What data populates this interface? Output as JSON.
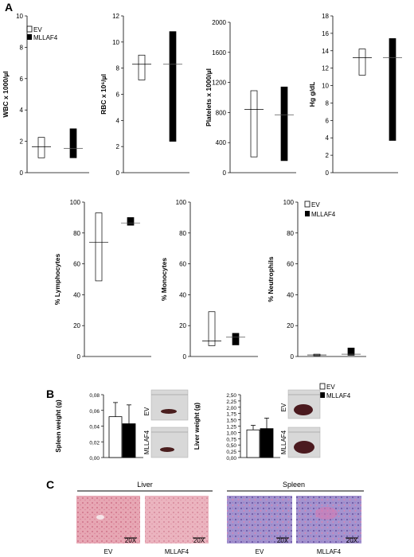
{
  "panels": {
    "a": "A",
    "b": "B",
    "c": "C"
  },
  "legend": {
    "ev": "EV",
    "mllaf4": "MLLAF4"
  },
  "chart_data": [
    {
      "type": "box",
      "id": "wbc",
      "ylabel": "WBC x 1000/µl",
      "ylim": [
        0,
        10
      ],
      "yticks": [
        "0",
        "2",
        "4",
        "6",
        "8",
        "10"
      ],
      "yticks_val": [
        0,
        2,
        4,
        6,
        8,
        10
      ],
      "series": [
        {
          "name": "EV",
          "low": 0.95,
          "high": 2.25,
          "mid": 1.65
        },
        {
          "name": "MLLAF4",
          "low": 0.95,
          "high": 2.8,
          "mid": 1.55
        }
      ]
    },
    {
      "type": "box",
      "id": "rbc",
      "ylabel": "RBC x 10⁶/µl",
      "ylim": [
        0,
        12
      ],
      "yticks": [
        "0",
        "2",
        "4",
        "6",
        "8",
        "10",
        "12"
      ],
      "yticks_val": [
        0,
        2,
        4,
        6,
        8,
        10,
        12
      ],
      "series": [
        {
          "name": "EV",
          "low": 7.1,
          "high": 9.0,
          "mid": 8.3
        },
        {
          "name": "MLLAF4",
          "low": 2.4,
          "high": 10.8,
          "mid": 8.3
        }
      ]
    },
    {
      "type": "box",
      "id": "plt",
      "ylabel": "Platelets x 1000/µl",
      "ylim": [
        0,
        2000
      ],
      "yticks": [
        "0",
        "400",
        "800",
        "1200",
        "1600",
        "2000"
      ],
      "yticks_val": [
        0,
        400,
        800,
        1200,
        1600,
        2000
      ],
      "series": [
        {
          "name": "EV",
          "low": 210,
          "high": 1090,
          "mid": 840
        },
        {
          "name": "MLLAF4",
          "low": 160,
          "high": 1140,
          "mid": 770
        }
      ]
    },
    {
      "type": "box",
      "id": "hg",
      "ylabel": "Hg g/dL",
      "ylim": [
        0,
        18
      ],
      "yticks": [
        "0",
        "2",
        "4",
        "6",
        "8",
        "10",
        "12",
        "14",
        "16",
        "18"
      ],
      "yticks_val": [
        0,
        2,
        4,
        6,
        8,
        10,
        12,
        14,
        16,
        18
      ],
      "series": [
        {
          "name": "EV",
          "low": 11.2,
          "high": 14.2,
          "mid": 13.2
        },
        {
          "name": "MLLAF4",
          "low": 3.7,
          "high": 15.4,
          "mid": 13.2
        }
      ]
    },
    {
      "type": "box",
      "id": "lym",
      "ylabel": "% Lymphocytes",
      "ylim": [
        0,
        100
      ],
      "yticks": [
        "0",
        "20",
        "40",
        "60",
        "80",
        "100"
      ],
      "yticks_val": [
        0,
        20,
        40,
        60,
        80,
        100
      ],
      "series": [
        {
          "name": "EV",
          "low": 49,
          "high": 93,
          "mid": 74
        },
        {
          "name": "MLLAF4",
          "low": 85,
          "high": 90,
          "mid": 86.5
        }
      ]
    },
    {
      "type": "box",
      "id": "mono",
      "ylabel": "% Monocytes",
      "ylim": [
        0,
        100
      ],
      "yticks": [
        "0",
        "20",
        "40",
        "60",
        "80",
        "100"
      ],
      "yticks_val": [
        0,
        20,
        40,
        60,
        80,
        100
      ],
      "series": [
        {
          "name": "EV",
          "low": 7,
          "high": 29,
          "mid": 10
        },
        {
          "name": "MLLAF4",
          "low": 7.5,
          "high": 15,
          "mid": 12.5
        }
      ]
    },
    {
      "type": "box",
      "id": "neu",
      "ylabel": "% Neutrophils",
      "ylim": [
        0,
        100
      ],
      "yticks": [
        "0",
        "20",
        "40",
        "60",
        "80",
        "100"
      ],
      "yticks_val": [
        0,
        20,
        40,
        60,
        80,
        100
      ],
      "series": [
        {
          "name": "EV",
          "low": 0.5,
          "high": 1.5,
          "mid": 1
        },
        {
          "name": "MLLAF4",
          "low": 0.8,
          "high": 5.5,
          "mid": 1.5
        }
      ]
    },
    {
      "type": "bar",
      "id": "spleen",
      "ylabel": "Spleen weight (g)",
      "ylim": [
        0,
        0.08
      ],
      "yticks": [
        "0,00",
        "0,02",
        "0,04",
        "0,06",
        "0,08"
      ],
      "yticks_val": [
        0,
        0.02,
        0.04,
        0.06,
        0.08
      ],
      "categories": [
        "EV",
        "MLLAF4"
      ],
      "values": [
        0.052,
        0.043
      ],
      "errors": [
        0.018,
        0.024
      ]
    },
    {
      "type": "bar",
      "id": "liver",
      "ylabel": "Liver weight (g)",
      "ylim": [
        0,
        2.5
      ],
      "yticks": [
        "0,00",
        "0,25",
        "0,50",
        "0,75",
        "1,00",
        "1,25",
        "1,50",
        "1,75",
        "2,00",
        "2,25",
        "2,50"
      ],
      "yticks_val": [
        0,
        0.25,
        0.5,
        0.75,
        1.0,
        1.25,
        1.5,
        1.75,
        2.0,
        2.25,
        2.5
      ],
      "categories": [
        "EV",
        "MLLAF4"
      ],
      "values": [
        1.1,
        1.15
      ],
      "errors": [
        0.18,
        0.42
      ]
    }
  ],
  "photos": {
    "ev": "EV",
    "mllaf4": "MLLAF4"
  },
  "histology": {
    "liver": "Liver",
    "spleen": "Spleen",
    "scale": "20X",
    "labels": [
      "EV",
      "MLLAF4",
      "EV",
      "MLLAF4"
    ]
  },
  "colors": {
    "ev_fill": "#ffffff",
    "mllaf4_fill": "#000000"
  }
}
